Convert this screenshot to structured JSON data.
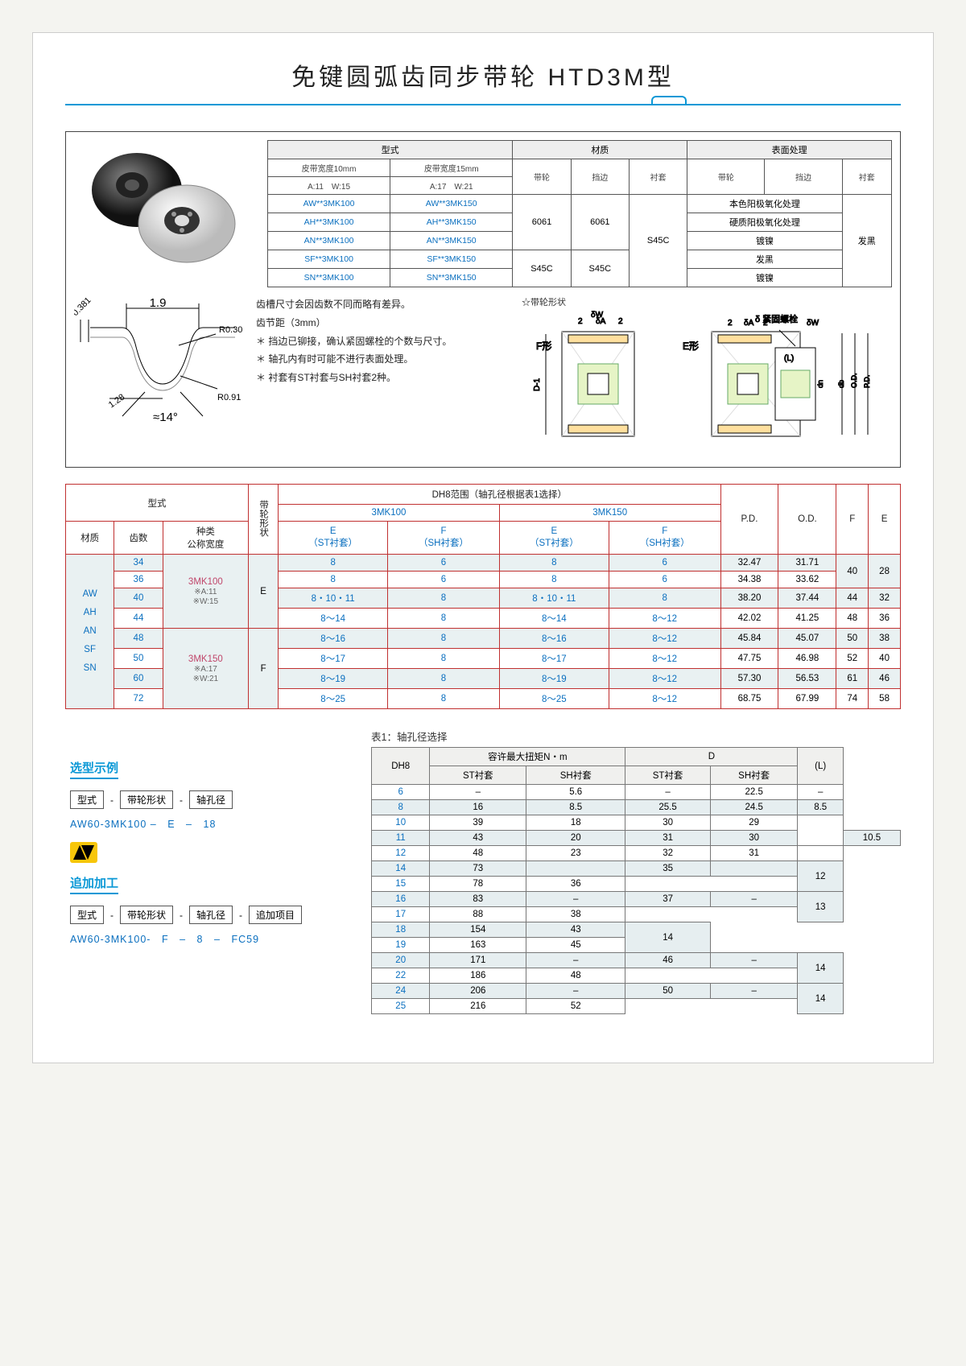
{
  "title": "免键圆弧齿同步带轮 HTD3M型",
  "top_table": {
    "headers": {
      "type": "型式",
      "material": "材质",
      "surface": "表面处理",
      "belt10": "皮带宽度10mm",
      "belt15": "皮带宽度15mm",
      "pulley": "带轮",
      "flange": "挡边",
      "bush": "衬套"
    },
    "belt10_sub": "A:11　W:15",
    "belt15_sub": "A:17　W:21",
    "rows": [
      {
        "c10": "AW**3MK100",
        "c15": "AW**3MK150",
        "surf": "本色阳极氧化处理"
      },
      {
        "c10": "AH**3MK100",
        "c15": "AH**3MK150",
        "surf": "硬质阳极氧化处理"
      },
      {
        "c10": "AN**3MK100",
        "c15": "AN**3MK150",
        "surf": "镀镍"
      },
      {
        "c10": "SF**3MK100",
        "c15": "SF**3MK150",
        "surf": "发黑"
      },
      {
        "c10": "SN**3MK100",
        "c15": "SN**3MK150",
        "surf": "镀镍"
      }
    ],
    "mat_groups": {
      "al": [
        "6061",
        "6061"
      ],
      "steel": [
        "S45C",
        "S45C"
      ],
      "bush": "S45C",
      "bush_surf": "发黑"
    }
  },
  "notes": {
    "l1": "齿槽尺寸会因齿数不同而略有差异。",
    "l2": "齿节距（3mm）",
    "l3": "＊ 挡边已铆接，确认紧固螺栓的个数与尺寸。",
    "l4": "＊ 轴孔内有时可能不进行表面处理。",
    "l5": "＊ 衬套有ST衬套与SH衬套2种。"
  },
  "shape": {
    "title": "☆带轮形状",
    "f": "F形",
    "e": "E形",
    "bolt": "δ 紧固螺栓",
    "labels": [
      "δW",
      "δA",
      "2",
      "2",
      "(L)",
      "D-1",
      "dn",
      "O.D.",
      "P.D.",
      "db"
    ]
  },
  "tooth": {
    "h": "0.381",
    "w": "1.9",
    "r1": "R0.305",
    "r2": "R0.91",
    "d": "1.28",
    "ang": "≈14°"
  },
  "mid": {
    "h": {
      "type": "型式",
      "shape": "带轮形状",
      "range": "DH8范围（轴孔径根据表1选择）",
      "g1": "3MK100",
      "g2": "3MK150",
      "pd": "P.D.",
      "od": "O.D.",
      "f": "F",
      "e": "E",
      "mat": "材质",
      "teeth": "齿数",
      "kind": "种类\n公称宽度",
      "est": "E\n（ST衬套）",
      "fsh": "F\n（SH衬套）"
    },
    "mats": "AW\nAH\nAN\nSF\nSN",
    "kind1": "3MK100",
    "kind1s": "※A:11\n※W:15",
    "kind2": "3MK150",
    "kind2s": "※A:17\n※W:21",
    "rows": [
      {
        "t": "34",
        "sh": "",
        "e1": "8",
        "f1": "6",
        "e2": "8",
        "f2": "6",
        "pd": "32.47",
        "od": "31.71",
        "F": "40",
        "E": "28",
        "alt": 1,
        "Fm": 2,
        "Em": 2
      },
      {
        "t": "36",
        "sh": "",
        "e1": "8",
        "f1": "6",
        "e2": "8",
        "f2": "6",
        "pd": "34.38",
        "od": "33.62",
        "alt": 0
      },
      {
        "t": "40",
        "sh": "E",
        "e1": "8・10・11",
        "f1": "8",
        "e2": "8・10・11",
        "f2": "8",
        "pd": "38.20",
        "od": "37.44",
        "F": "44",
        "E": "32",
        "alt": 1
      },
      {
        "t": "44",
        "sh": "",
        "e1": "8～14",
        "f1": "8",
        "e2": "8～14",
        "f2": "8～12",
        "pd": "42.02",
        "od": "41.25",
        "F": "48",
        "E": "36",
        "alt": 0
      },
      {
        "t": "48",
        "sh": "",
        "e1": "8～16",
        "f1": "8",
        "e2": "8～16",
        "f2": "8～12",
        "pd": "45.84",
        "od": "45.07",
        "F": "50",
        "E": "38",
        "alt": 1
      },
      {
        "t": "50",
        "sh": "F",
        "e1": "8～17",
        "f1": "8",
        "e2": "8～17",
        "f2": "8～12",
        "pd": "47.75",
        "od": "46.98",
        "F": "52",
        "E": "40",
        "alt": 0
      },
      {
        "t": "60",
        "sh": "",
        "e1": "8～19",
        "f1": "8",
        "e2": "8～19",
        "f2": "8～12",
        "pd": "57.30",
        "od": "56.53",
        "F": "61",
        "E": "46",
        "alt": 1
      },
      {
        "t": "72",
        "sh": "",
        "e1": "8～25",
        "f1": "8",
        "e2": "8～25",
        "f2": "8～12",
        "pd": "68.75",
        "od": "67.99",
        "F": "74",
        "E": "58",
        "alt": 0
      }
    ]
  },
  "select": {
    "head": "选型示例",
    "chips": [
      "型式",
      "带轮形状",
      "轴孔径"
    ],
    "ex": "AW60-3MK100 –　E　–　18",
    "head2": "追加加工",
    "chips2": [
      "型式",
      "带轮形状",
      "轴孔径",
      "追加项目"
    ],
    "ex2": "AW60-3MK100-　F　–　8　–　FC59"
  },
  "bore": {
    "caption": "表1：轴孔径选择",
    "h": {
      "dh8": "DH8",
      "torque": "容许最大扭矩N・m",
      "d": "D",
      "l": "(L)",
      "st": "ST衬套",
      "sh": "SH衬套"
    },
    "rows": [
      {
        "d": "6",
        "tst": "–",
        "tsh": "5.6",
        "Dst": "–",
        "Dsh": "22.5",
        "L": "–",
        "alt": 0
      },
      {
        "d": "8",
        "tst": "16",
        "tsh": "8.5",
        "Dst": "25.5",
        "Dsh": "24.5",
        "L": "8.5",
        "alt": 1
      },
      {
        "d": "10",
        "tst": "39",
        "tsh": "18",
        "Dst": "30",
        "Dsh": "29",
        "alt": 0,
        "Lm": 2,
        "L": ""
      },
      {
        "d": "11",
        "tst": "43",
        "tsh": "20",
        "Dst": "31",
        "Dsh": "30",
        "L": "10.5",
        "alt": 1
      },
      {
        "d": "12",
        "tst": "48",
        "tsh": "23",
        "Dst": "32",
        "Dsh": "31",
        "alt": 0,
        "L": ""
      },
      {
        "d": "14",
        "tst": "73",
        "tsh": "",
        "Dst": "35",
        "Dsh": "",
        "alt": 1,
        "tm": 9,
        "dm": 9,
        "Lm": 2,
        "L": "12"
      },
      {
        "d": "15",
        "tst": "78",
        "Dst": "36",
        "alt": 0
      },
      {
        "d": "16",
        "tst": "83",
        "tsh2": "–",
        "Dst": "37",
        "Dsh2": "–",
        "alt": 1,
        "Lm": 2,
        "L": "13"
      },
      {
        "d": "17",
        "tst": "88",
        "Dst": "38",
        "alt": 0
      },
      {
        "d": "18",
        "tst": "154",
        "Dst": "43",
        "alt": 1,
        "Lm": 2,
        "L": "14"
      },
      {
        "d": "19",
        "tst": "163",
        "Dst": "45",
        "alt": 0
      },
      {
        "d": "20",
        "tst": "171",
        "tsh2": "–",
        "Dst": "46",
        "Dsh2": "–",
        "alt": 1,
        "Lm": 2,
        "L": "14"
      },
      {
        "d": "22",
        "tst": "186",
        "Dst": "48",
        "alt": 0
      },
      {
        "d": "24",
        "tst": "206",
        "tsh2": "–",
        "Dst": "50",
        "Dsh2": "–",
        "alt": 1,
        "Lm": 2,
        "L": "14"
      },
      {
        "d": "25",
        "tst": "216",
        "Dst": "52",
        "alt": 0
      }
    ]
  }
}
